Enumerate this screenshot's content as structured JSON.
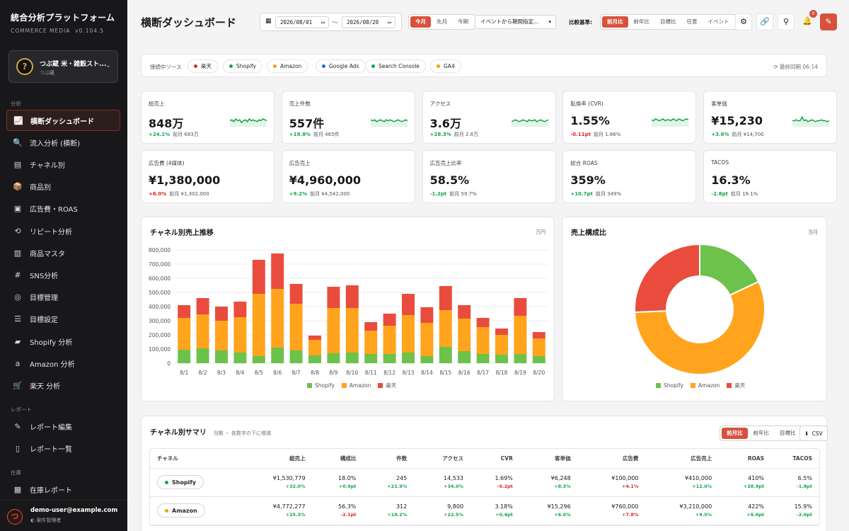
{
  "app": {
    "title": "統合分析プラットフォーム",
    "subtitle": "COMMERCE MEDIA",
    "version": "v0.104.5"
  },
  "store": {
    "name": "つぶ蔵 米・雑穀スト...",
    "sub": "つぶ蔵",
    "avatar": "?"
  },
  "sidebar": {
    "section_analysis": "分析",
    "items": [
      {
        "label": "横断ダッシュボード",
        "icon": "chart-line-icon",
        "glyph": "📈"
      },
      {
        "label": "流入分析 (横断)",
        "icon": "search-icon",
        "glyph": "🔍"
      },
      {
        "label": "チャネル別",
        "icon": "store-icon",
        "glyph": "▤"
      },
      {
        "label": "商品別",
        "icon": "box-icon",
        "glyph": "📦"
      },
      {
        "label": "広告費・ROAS",
        "icon": "ad-icon",
        "glyph": "▣"
      },
      {
        "label": "リピート分析",
        "icon": "repeat-icon",
        "glyph": "⟲"
      },
      {
        "label": "商品マスタ",
        "icon": "archive-icon",
        "glyph": "▥"
      },
      {
        "label": "SNS分析",
        "icon": "hashtag-icon",
        "glyph": "#"
      },
      {
        "label": "目標管理",
        "icon": "target-icon",
        "glyph": "◎"
      },
      {
        "label": "目標設定",
        "icon": "sliders-icon",
        "glyph": "☰"
      },
      {
        "label": "Shopify 分析",
        "icon": "shopify-icon",
        "glyph": "▰"
      },
      {
        "label": "Amazon 分析",
        "icon": "amazon-icon",
        "glyph": "a"
      },
      {
        "label": "楽天 分析",
        "icon": "cart-icon",
        "glyph": "🛒"
      }
    ],
    "section_report": "レポート",
    "report_items": [
      {
        "label": "レポート編集",
        "icon": "edit-icon",
        "glyph": "✎"
      },
      {
        "label": "レポート一覧",
        "icon": "file-icon",
        "glyph": "▯"
      }
    ],
    "section_inventory": "在庫",
    "inventory_items": [
      {
        "label": "在庫レポート",
        "icon": "warehouse-icon",
        "glyph": "▦"
      }
    ]
  },
  "user": {
    "email": "demo-user@example.com",
    "role": "案件管理者",
    "avatar": "つ"
  },
  "header": {
    "title": "横断ダッシュボード",
    "date_from": "2026/08/01",
    "date_to": "2026/08/20",
    "date_sep": "〜",
    "periods": [
      "今月",
      "先月",
      "今期"
    ],
    "event_select": "イベントから期間指定...",
    "compare_label": "比較基準:",
    "compare_options": [
      "前月比",
      "前年比",
      "目標比",
      "任意",
      "イベント"
    ],
    "notifications": "0"
  },
  "sources": {
    "label": "接続中ソース",
    "items": [
      {
        "name": "楽天",
        "color": "#dc2626"
      },
      {
        "name": "Shopify",
        "color": "#16a34a"
      },
      {
        "name": "Amazon",
        "color": "#f59e0b"
      },
      {
        "name": "Google Ads",
        "color": "#2563eb"
      },
      {
        "name": "Search Console",
        "color": "#16a34a"
      },
      {
        "name": "GA4",
        "color": "#f59e0b"
      }
    ],
    "last_sync": "最終同期 06:14"
  },
  "kpis_row1": [
    {
      "label": "総売上",
      "value": "848万",
      "delta": "+24.1%",
      "dir": "up",
      "prev": "前月 683万"
    },
    {
      "label": "売上件数",
      "value": "557件",
      "delta": "+19.8%",
      "dir": "up",
      "prev": "前月 465件"
    },
    {
      "label": "アクセス",
      "value": "3.6万",
      "delta": "+28.3%",
      "dir": "up",
      "prev": "前月 2.8万"
    },
    {
      "label": "転換率 (CVR)",
      "value": "1.55%",
      "delta": "-0.11pt",
      "dir": "down",
      "prev": "前月 1.66%"
    },
    {
      "label": "客単価",
      "value": "¥15,230",
      "delta": "+3.6%",
      "dir": "up",
      "prev": "前月 ¥14,700"
    }
  ],
  "kpis_row2": [
    {
      "label": "広告費 (4媒体)",
      "value": "¥1,380,000",
      "delta": "+6.0%",
      "dir": "down",
      "prev": "前月 ¥1,302,000"
    },
    {
      "label": "広告売上",
      "value": "¥4,960,000",
      "delta": "+9.2%",
      "dir": "up",
      "prev": "前月 ¥4,542,000"
    },
    {
      "label": "広告売上比率",
      "value": "58.5%",
      "delta": "-1.2pt",
      "dir": "up",
      "prev": "前月 59.7%"
    },
    {
      "label": "総合 ROAS",
      "value": "359%",
      "delta": "+10.7pt",
      "dir": "up",
      "prev": "前月 349%"
    },
    {
      "label": "TACOS",
      "value": "16.3%",
      "delta": "-2.8pt",
      "dir": "up",
      "prev": "前月 19.1%"
    }
  ],
  "chart_data": [
    {
      "type": "bar",
      "stacked": true,
      "title": "チャネル別売上推移",
      "unit": "万円",
      "categories": [
        "8/1",
        "8/2",
        "8/3",
        "8/4",
        "8/5",
        "8/6",
        "8/7",
        "8/8",
        "8/9",
        "8/10",
        "8/11",
        "8/12",
        "8/13",
        "8/14",
        "8/15",
        "8/16",
        "8/17",
        "8/18",
        "8/19",
        "8/20"
      ],
      "series": [
        {
          "name": "Shopify",
          "color": "#6cc24a",
          "values": [
            95000,
            105000,
            90000,
            75000,
            50000,
            110000,
            90000,
            55000,
            70000,
            75000,
            65000,
            65000,
            75000,
            50000,
            115000,
            85000,
            65000,
            60000,
            65000,
            50000
          ]
        },
        {
          "name": "Amazon",
          "color": "#ffa41c",
          "values": [
            225000,
            240000,
            210000,
            250000,
            440000,
            415000,
            330000,
            110000,
            320000,
            315000,
            165000,
            200000,
            265000,
            235000,
            260000,
            230000,
            190000,
            140000,
            270000,
            125000
          ]
        },
        {
          "name": "楽天",
          "color": "#e94c3d",
          "values": [
            90000,
            115000,
            100000,
            110000,
            240000,
            250000,
            140000,
            30000,
            150000,
            160000,
            60000,
            85000,
            150000,
            110000,
            170000,
            95000,
            65000,
            45000,
            125000,
            45000
          ]
        }
      ],
      "yticks": [
        "0",
        "100,000",
        "200,000",
        "300,000",
        "400,000",
        "500,000",
        "600,000",
        "700,000",
        "800,000"
      ],
      "ylim": [
        0,
        800000
      ]
    },
    {
      "type": "pie",
      "donut": true,
      "title": "売上構成比",
      "unit": "当月",
      "labels": [
        "Shopify",
        "Amazon",
        "楽天"
      ],
      "values": [
        18.0,
        56.3,
        25.7
      ],
      "colors": [
        "#6cc24a",
        "#ffa41c",
        "#e94c3d"
      ]
    }
  ],
  "summary": {
    "title": "チャネル別サマリ",
    "note": "当期 ・ 各数字の下に増減",
    "tabs": [
      "前月比",
      "前年比",
      "目標比"
    ],
    "csv": "CSV",
    "columns": [
      "チャネル",
      "総売上",
      "構成比",
      "件数",
      "アクセス",
      "CVR",
      "客単価",
      "広告費",
      "広告売上",
      "ROAS",
      "TACOS"
    ],
    "rows": [
      {
        "channel": "Shopify",
        "color": "#16a34a",
        "cells": [
          {
            "v": "¥1,530,779",
            "d": "+32.0%",
            "dir": "up"
          },
          {
            "v": "18.0%",
            "d": "+0.9pt",
            "dir": "up"
          },
          {
            "v": "245",
            "d": "+21.9%",
            "dir": "up"
          },
          {
            "v": "14,533",
            "d": "+34.0%",
            "dir": "up"
          },
          {
            "v": "1.69%",
            "d": "-0.2pt",
            "dir": "down"
          },
          {
            "v": "¥6,248",
            "d": "+8.3%",
            "dir": "up"
          },
          {
            "v": "¥100,000",
            "d": "+4.1%",
            "dir": "down"
          },
          {
            "v": "¥410,000",
            "d": "+12.0%",
            "dir": "up"
          },
          {
            "v": "410%",
            "d": "+28.9pt",
            "dir": "up"
          },
          {
            "v": "6.5%",
            "d": "-1.8pt",
            "dir": "up"
          }
        ]
      },
      {
        "channel": "Amazon",
        "color": "#f59e0b",
        "cells": [
          {
            "v": "¥4,772,277",
            "d": "+25.3%",
            "dir": "up"
          },
          {
            "v": "56.3%",
            "d": "-2.1pt",
            "dir": "down"
          },
          {
            "v": "312",
            "d": "+18.2%",
            "dir": "up"
          },
          {
            "v": "9,800",
            "d": "+22.5%",
            "dir": "up"
          },
          {
            "v": "3.18%",
            "d": "+0.4pt",
            "dir": "up"
          },
          {
            "v": "¥15,296",
            "d": "+6.0%",
            "dir": "up"
          },
          {
            "v": "¥760,000",
            "d": "+7.8%",
            "dir": "down"
          },
          {
            "v": "¥3,210,000",
            "d": "+9.5%",
            "dir": "up"
          },
          {
            "v": "422%",
            "d": "+6.6pt",
            "dir": "up"
          },
          {
            "v": "15.9%",
            "d": "-2.6pt",
            "dir": "up"
          }
        ]
      }
    ]
  }
}
